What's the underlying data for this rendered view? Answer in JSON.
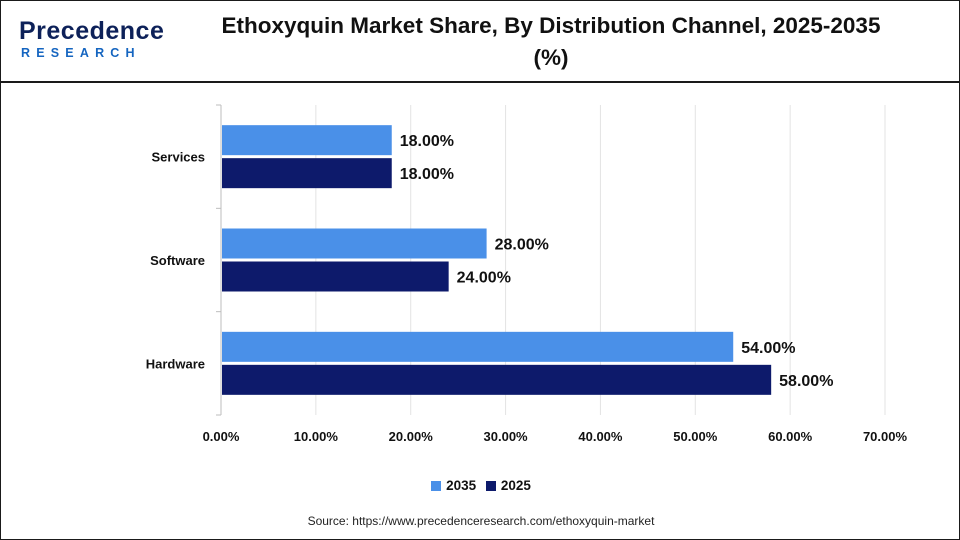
{
  "header": {
    "logo_top": "Precedence",
    "logo_bottom": "RESEARCH",
    "title": "Ethoxyquin Market Share, By Distribution Channel, 2025-2035 (%)"
  },
  "source": "Source: https://www.precedenceresearch.com/ethoxyquin-market",
  "colors": {
    "series_2035": "#4a90e8",
    "series_2025": "#0d1a6b",
    "logo_dark": "#0d2159",
    "logo_accent": "#1565c0"
  },
  "chart_data": {
    "type": "bar",
    "orientation": "horizontal",
    "title": "Ethoxyquin Market Share, By Distribution Channel, 2025-2035 (%)",
    "categories": [
      "Services",
      "Software",
      "Hardware"
    ],
    "series": [
      {
        "name": "2035",
        "values": [
          18.0,
          28.0,
          54.0
        ],
        "labels": [
          "18.00%",
          "28.00%",
          "54.00%"
        ],
        "color": "#4a90e8"
      },
      {
        "name": "2025",
        "values": [
          18.0,
          24.0,
          58.0
        ],
        "labels": [
          "18.00%",
          "24.00%",
          "58.00%"
        ],
        "color": "#0d1a6b"
      }
    ],
    "xlim": [
      0,
      70
    ],
    "x_ticks": [
      0,
      10,
      20,
      30,
      40,
      50,
      60,
      70
    ],
    "x_tick_labels": [
      "0.00%",
      "10.00%",
      "20.00%",
      "30.00%",
      "40.00%",
      "50.00%",
      "60.00%",
      "70.00%"
    ],
    "xlabel": "",
    "ylabel": "",
    "grid": "vertical",
    "legend_position": "bottom-center"
  }
}
